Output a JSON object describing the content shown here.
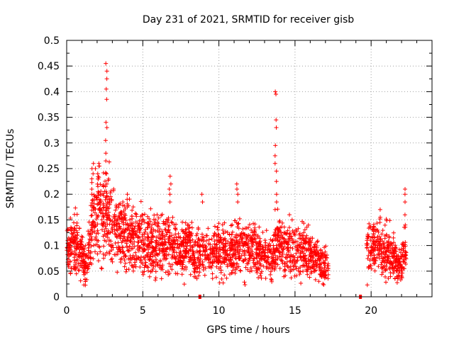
{
  "chart_data": {
    "type": "scatter",
    "title": "Day 231 of 2021, SRMTID for receiver gisb",
    "xlabel": "GPS time / hours",
    "ylabel": "SRMTID / TECUs",
    "xlim": [
      0,
      24
    ],
    "ylim": [
      0,
      0.5
    ],
    "xticks": [
      0,
      5,
      10,
      15,
      20
    ],
    "xtick_labels": [
      "0",
      "5",
      "10",
      "15",
      "20"
    ],
    "yticks": [
      0,
      0.05,
      0.1,
      0.15,
      0.2,
      0.25,
      0.3,
      0.35,
      0.4,
      0.45,
      0.5
    ],
    "ytick_labels": [
      "0",
      "0.05",
      "0.1",
      "0.15",
      "0.2",
      "0.25",
      "0.3",
      "0.35",
      "0.4",
      "0.45",
      "0.5"
    ],
    "grid": true,
    "marker": "+",
    "color": "#ff0000",
    "data_gap_markers_x": [
      8.75,
      19.3
    ],
    "series": [
      {
        "name": "SRMTID",
        "segments": [
          {
            "x_range": [
              0.0,
              17.2
            ],
            "profile": [
              [
                0.0,
                0.09
              ],
              [
                0.5,
                0.1
              ],
              [
                1.0,
                0.08
              ],
              [
                1.3,
                0.06
              ],
              [
                1.5,
                0.1
              ],
              [
                1.7,
                0.15
              ],
              [
                2.0,
                0.17
              ],
              [
                2.3,
                0.15
              ],
              [
                2.6,
                0.17
              ],
              [
                2.9,
                0.16
              ],
              [
                3.3,
                0.12
              ],
              [
                3.7,
                0.13
              ],
              [
                4.0,
                0.12
              ],
              [
                4.5,
                0.11
              ],
              [
                5.0,
                0.11
              ],
              [
                5.5,
                0.1
              ],
              [
                6.0,
                0.1
              ],
              [
                6.5,
                0.11
              ],
              [
                7.0,
                0.1
              ],
              [
                7.5,
                0.09
              ],
              [
                8.0,
                0.1
              ],
              [
                8.5,
                0.08
              ],
              [
                9.0,
                0.09
              ],
              [
                9.5,
                0.08
              ],
              [
                10.0,
                0.09
              ],
              [
                10.5,
                0.09
              ],
              [
                11.0,
                0.09
              ],
              [
                11.5,
                0.1
              ],
              [
                12.0,
                0.09
              ],
              [
                12.5,
                0.09
              ],
              [
                13.0,
                0.08
              ],
              [
                13.5,
                0.07
              ],
              [
                13.8,
                0.1
              ],
              [
                14.0,
                0.1
              ],
              [
                14.5,
                0.09
              ],
              [
                15.0,
                0.09
              ],
              [
                15.5,
                0.09
              ],
              [
                16.0,
                0.08
              ],
              [
                16.5,
                0.07
              ],
              [
                17.0,
                0.06
              ]
            ]
          },
          {
            "x_range": [
              19.7,
              22.3
            ],
            "profile": [
              [
                19.7,
                0.09
              ],
              [
                20.2,
                0.1
              ],
              [
                20.7,
                0.09
              ],
              [
                21.2,
                0.09
              ],
              [
                21.6,
                0.07
              ],
              [
                22.0,
                0.07
              ],
              [
                22.3,
                0.09
              ]
            ]
          }
        ],
        "spikes": [
          {
            "x": 2.6,
            "values": [
              0.455,
              0.44,
              0.425,
              0.405,
              0.385,
              0.34,
              0.33,
              0.305,
              0.28,
              0.265,
              0.24,
              0.22
            ]
          },
          {
            "x": 1.7,
            "values": [
              0.26,
              0.25,
              0.24,
              0.23,
              0.21,
              0.2
            ]
          },
          {
            "x": 2.1,
            "values": [
              0.255,
              0.24,
              0.23,
              0.215,
              0.205
            ]
          },
          {
            "x": 6.8,
            "values": [
              0.235,
              0.22,
              0.21,
              0.2,
              0.185
            ]
          },
          {
            "x": 11.2,
            "values": [
              0.22,
              0.21,
              0.2,
              0.185
            ]
          },
          {
            "x": 8.9,
            "values": [
              0.2,
              0.185
            ]
          },
          {
            "x": 13.75,
            "values": [
              0.4,
              0.395,
              0.345,
              0.33,
              0.295,
              0.275,
              0.26,
              0.245,
              0.225,
              0.2,
              0.185,
              0.17
            ]
          },
          {
            "x": 22.2,
            "values": [
              0.21,
              0.2,
              0.185,
              0.16,
              0.14
            ]
          },
          {
            "x": 20.6,
            "values": [
              0.17,
              0.155,
              0.145
            ]
          },
          {
            "x": 4.0,
            "values": [
              0.2,
              0.19,
              0.175
            ]
          }
        ]
      }
    ]
  }
}
